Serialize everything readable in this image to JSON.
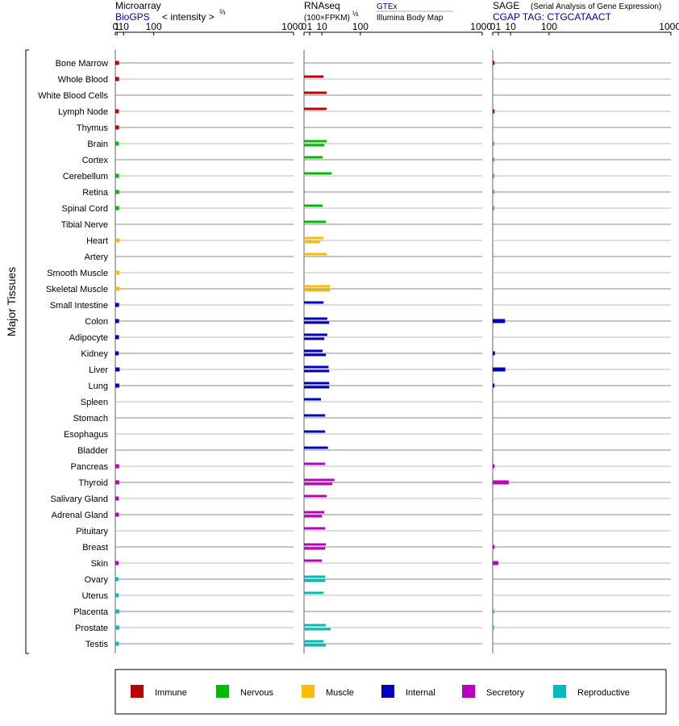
{
  "panels": {
    "microarray": {
      "title": "Microarray",
      "source": "BioGPS",
      "scale_label": "< intensity >",
      "scale_exp": "⅔"
    },
    "rnaseq": {
      "title": "RNAseq",
      "scale_label": "(100×FPKM)",
      "scale_exp": "½",
      "source_a": "GTEx",
      "source_b": "Illumina Body Map"
    },
    "sage": {
      "title": "SAGE",
      "subtitle": "(Serial Analysis of Gene Expression)",
      "source": "CGAP TAG: CTGCATAACT"
    }
  },
  "y_group_label": "Major Tissues",
  "colors": {
    "Immune": "#bb0000",
    "Nervous": "#00bb00",
    "Muscle": "#ffbb00",
    "Internal": "#0000bb",
    "Secretory": "#bb00bb",
    "Reproductive": "#00bbbb"
  },
  "legend": [
    "Immune",
    "Nervous",
    "Muscle",
    "Internal",
    "Secretory",
    "Reproductive"
  ],
  "chart_data": {
    "type": "bar",
    "orientation": "horizontal",
    "x_ticks": [
      "0",
      "1",
      "10",
      "100",
      "1000"
    ],
    "xlim": [
      0,
      1000
    ],
    "categories": [
      "Bone Marrow",
      "Whole Blood",
      "White Blood Cells",
      "Lymph Node",
      "Thymus",
      "Brain",
      "Cortex",
      "Cerebellum",
      "Retina",
      "Spinal Cord",
      "Tibial Nerve",
      "Heart",
      "Artery",
      "Smooth Muscle",
      "Skeletal Muscle",
      "Small Intestine",
      "Colon",
      "Adipocyte",
      "Kidney",
      "Liver",
      "Lung",
      "Spleen",
      "Stomach",
      "Esophagus",
      "Bladder",
      "Pancreas",
      "Thyroid",
      "Salivary Gland",
      "Adrenal Gland",
      "Pituitary",
      "Breast",
      "Skin",
      "Ovary",
      "Uterus",
      "Placenta",
      "Prostate",
      "Testis"
    ],
    "groups": [
      "Immune",
      "Immune",
      "Immune",
      "Immune",
      "Immune",
      "Nervous",
      "Nervous",
      "Nervous",
      "Nervous",
      "Nervous",
      "Nervous",
      "Muscle",
      "Muscle",
      "Muscle",
      "Muscle",
      "Internal",
      "Internal",
      "Internal",
      "Internal",
      "Internal",
      "Internal",
      "Internal",
      "Internal",
      "Internal",
      "Internal",
      "Secretory",
      "Secretory",
      "Secretory",
      "Secretory",
      "Secretory",
      "Secretory",
      "Secretory",
      "Reproductive",
      "Reproductive",
      "Reproductive",
      "Reproductive",
      "Reproductive"
    ],
    "series": [
      {
        "name": "Microarray",
        "values": [
          3.0,
          3.1,
          null,
          2.8,
          3.0,
          2.6,
          null,
          3.0,
          3.3,
          3.2,
          null,
          3.7,
          null,
          3.6,
          3.7,
          3.0,
          3.0,
          2.9,
          2.6,
          3.8,
          3.3,
          null,
          null,
          null,
          null,
          3.2,
          3.3,
          2.6,
          2.8,
          null,
          null,
          2.4,
          2.2,
          2.4,
          3.4,
          3.4,
          2.7
        ]
      },
      {
        "name": "GTEx",
        "values": [
          null,
          12,
          16,
          16,
          null,
          16,
          11,
          24,
          null,
          11,
          15,
          12,
          16,
          null,
          21,
          12,
          17,
          17,
          11,
          19,
          20,
          9,
          14,
          14,
          18,
          14,
          29,
          16,
          13,
          14,
          15,
          10,
          14,
          12,
          null,
          15,
          12
        ]
      },
      {
        "name": "Illumina Body Map",
        "values": [
          null,
          null,
          null,
          null,
          null,
          13,
          null,
          null,
          null,
          null,
          null,
          8,
          null,
          null,
          21,
          null,
          20,
          13,
          15,
          20,
          20,
          null,
          null,
          null,
          null,
          null,
          25,
          null,
          10,
          null,
          14,
          null,
          14,
          null,
          null,
          22,
          15
        ]
      },
      {
        "name": "SAGE",
        "values": [
          0.1,
          null,
          null,
          0.1,
          null,
          0.05,
          0.05,
          0.05,
          0.05,
          0.05,
          null,
          0.02,
          null,
          null,
          0.02,
          null,
          4.8,
          null,
          0.15,
          5.0,
          0.1,
          null,
          null,
          null,
          null,
          0.1,
          8.0,
          null,
          null,
          null,
          0.1,
          1.0,
          null,
          null,
          0.05,
          0.05,
          null
        ]
      }
    ]
  }
}
